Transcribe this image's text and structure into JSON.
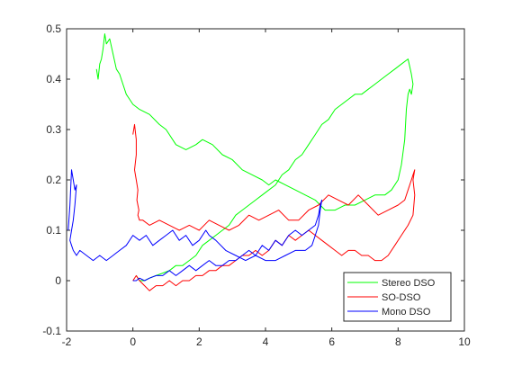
{
  "chart_data": {
    "type": "line",
    "title": "",
    "xlabel": "",
    "ylabel": "",
    "xlim": [
      -2,
      10
    ],
    "ylim": [
      -0.1,
      0.5
    ],
    "xticks": [
      "-2",
      "0",
      "2",
      "4",
      "6",
      "8",
      "10"
    ],
    "yticks": [
      "-0.1",
      "0",
      "0.1",
      "0.2",
      "0.3",
      "0.4",
      "0.5"
    ],
    "grid": false,
    "legend_position": "bottom-right",
    "series": [
      {
        "name": "Stereo DSO",
        "color": "#00ff00",
        "x": [
          -1.1,
          -1.05,
          -1.0,
          -0.95,
          -0.9,
          -0.85,
          -0.8,
          -0.7,
          -0.6,
          -0.5,
          -0.4,
          -0.3,
          -0.2,
          -0.1,
          0.0,
          0.2,
          0.5,
          0.8,
          1.0,
          1.3,
          1.6,
          1.9,
          2.1,
          2.4,
          2.7,
          3.0,
          3.3,
          3.6,
          3.9,
          4.1,
          4.3,
          4.6,
          4.9,
          5.2,
          5.5,
          5.8,
          6.1,
          6.4,
          6.7,
          7.0,
          7.3,
          7.6,
          7.8,
          8.0,
          8.1,
          8.2,
          8.25,
          8.3,
          8.35,
          8.4,
          8.45,
          8.4,
          8.3,
          8.1,
          7.9,
          7.7,
          7.5,
          7.3,
          7.1,
          6.9,
          6.7,
          6.5,
          6.3,
          6.1,
          5.9,
          5.7,
          5.5,
          5.3,
          5.1,
          4.9,
          4.7,
          4.5,
          4.3,
          4.1,
          3.9,
          3.7,
          3.5,
          3.3,
          3.1,
          2.9,
          2.7,
          2.5,
          2.3,
          2.1,
          1.9,
          1.7,
          1.5,
          1.3,
          1.1,
          0.9,
          0.7,
          0.5,
          0.35,
          0.2,
          0.1
        ],
        "y": [
          0.42,
          0.4,
          0.43,
          0.44,
          0.46,
          0.49,
          0.47,
          0.48,
          0.45,
          0.42,
          0.41,
          0.39,
          0.37,
          0.36,
          0.35,
          0.34,
          0.33,
          0.31,
          0.3,
          0.27,
          0.26,
          0.27,
          0.28,
          0.27,
          0.25,
          0.24,
          0.22,
          0.21,
          0.2,
          0.19,
          0.2,
          0.19,
          0.18,
          0.17,
          0.16,
          0.14,
          0.14,
          0.15,
          0.15,
          0.16,
          0.17,
          0.17,
          0.18,
          0.2,
          0.23,
          0.28,
          0.34,
          0.37,
          0.38,
          0.37,
          0.39,
          0.41,
          0.44,
          0.43,
          0.42,
          0.41,
          0.4,
          0.39,
          0.38,
          0.37,
          0.37,
          0.36,
          0.35,
          0.34,
          0.32,
          0.31,
          0.29,
          0.27,
          0.25,
          0.24,
          0.22,
          0.21,
          0.19,
          0.18,
          0.17,
          0.16,
          0.15,
          0.14,
          0.13,
          0.11,
          0.1,
          0.09,
          0.08,
          0.07,
          0.05,
          0.04,
          0.03,
          0.03,
          0.02,
          0.015,
          0.01,
          0.005,
          0.0,
          0.0,
          0.01
        ]
      },
      {
        "name": "SO-DSO",
        "color": "#ff0000",
        "x": [
          0.0,
          0.05,
          0.1,
          0.1,
          0.05,
          0.1,
          0.15,
          0.12,
          0.18,
          0.15,
          0.2,
          0.3,
          0.5,
          0.8,
          1.1,
          1.4,
          1.7,
          2.0,
          2.3,
          2.6,
          2.9,
          3.2,
          3.5,
          3.8,
          4.1,
          4.4,
          4.7,
          5.0,
          5.3,
          5.6,
          5.9,
          6.2,
          6.5,
          6.8,
          7.1,
          7.4,
          7.7,
          8.0,
          8.2,
          8.3,
          8.4,
          8.45,
          8.5,
          8.45,
          8.5,
          8.45,
          8.3,
          8.1,
          7.9,
          7.7,
          7.5,
          7.3,
          7.1,
          6.9,
          6.7,
          6.5,
          6.3,
          6.1,
          5.9,
          5.7,
          5.5,
          5.3,
          5.1,
          4.9,
          4.7,
          4.5,
          4.3,
          4.1,
          3.9,
          3.7,
          3.5,
          3.3,
          3.1,
          2.9,
          2.7,
          2.5,
          2.3,
          2.1,
          1.9,
          1.7,
          1.5,
          1.3,
          1.1,
          0.9,
          0.7,
          0.5,
          0.35,
          0.2,
          0.1,
          0.0
        ],
        "y": [
          0.29,
          0.31,
          0.28,
          0.25,
          0.22,
          0.2,
          0.18,
          0.16,
          0.14,
          0.13,
          0.12,
          0.12,
          0.11,
          0.12,
          0.11,
          0.1,
          0.11,
          0.1,
          0.12,
          0.11,
          0.1,
          0.11,
          0.13,
          0.12,
          0.13,
          0.14,
          0.12,
          0.12,
          0.14,
          0.15,
          0.17,
          0.16,
          0.15,
          0.17,
          0.15,
          0.13,
          0.14,
          0.15,
          0.16,
          0.18,
          0.2,
          0.21,
          0.22,
          0.2,
          0.17,
          0.13,
          0.11,
          0.09,
          0.07,
          0.05,
          0.04,
          0.04,
          0.05,
          0.05,
          0.06,
          0.06,
          0.05,
          0.06,
          0.07,
          0.08,
          0.09,
          0.1,
          0.09,
          0.08,
          0.09,
          0.07,
          0.08,
          0.06,
          0.05,
          0.06,
          0.05,
          0.05,
          0.04,
          0.03,
          0.03,
          0.02,
          0.02,
          0.01,
          0.01,
          0.0,
          0.0,
          -0.01,
          0.0,
          -0.01,
          -0.01,
          -0.02,
          -0.01,
          0.0,
          0.01,
          0.0
        ]
      },
      {
        "name": "Mono DSO",
        "color": "#0000ff",
        "x": [
          -1.95,
          -1.9,
          -1.85,
          -1.8,
          -1.75,
          -1.7,
          -1.75,
          -1.8,
          -1.85,
          -1.9,
          -1.85,
          -1.8,
          -1.7,
          -1.6,
          -1.4,
          -1.2,
          -1.0,
          -0.8,
          -0.6,
          -0.4,
          -0.2,
          0.0,
          0.2,
          0.4,
          0.6,
          0.8,
          1.0,
          1.2,
          1.4,
          1.6,
          1.8,
          2.0,
          2.2,
          2.3,
          2.5,
          2.8,
          3.1,
          3.4,
          3.7,
          4.0,
          4.3,
          4.6,
          4.9,
          5.2,
          5.4,
          5.5,
          5.6,
          5.65,
          5.7,
          5.65,
          5.6,
          5.5,
          5.3,
          5.1,
          4.9,
          4.7,
          4.5,
          4.3,
          4.1,
          3.9,
          3.7,
          3.5,
          3.3,
          3.1,
          2.9,
          2.7,
          2.5,
          2.3,
          2.1,
          1.9,
          1.7,
          1.5,
          1.3,
          1.1,
          0.9,
          0.7,
          0.5,
          0.35,
          0.2,
          0.1,
          0.0
        ],
        "y": [
          0.1,
          0.15,
          0.22,
          0.2,
          0.18,
          0.19,
          0.15,
          0.12,
          0.1,
          0.08,
          0.07,
          0.06,
          0.05,
          0.06,
          0.05,
          0.04,
          0.05,
          0.04,
          0.05,
          0.06,
          0.07,
          0.09,
          0.08,
          0.09,
          0.07,
          0.08,
          0.09,
          0.1,
          0.08,
          0.09,
          0.07,
          0.08,
          0.1,
          0.09,
          0.08,
          0.06,
          0.05,
          0.04,
          0.05,
          0.04,
          0.04,
          0.05,
          0.06,
          0.06,
          0.07,
          0.09,
          0.11,
          0.14,
          0.16,
          0.15,
          0.13,
          0.11,
          0.1,
          0.09,
          0.1,
          0.09,
          0.07,
          0.08,
          0.06,
          0.07,
          0.05,
          0.06,
          0.05,
          0.04,
          0.04,
          0.03,
          0.03,
          0.04,
          0.03,
          0.02,
          0.03,
          0.02,
          0.01,
          0.02,
          0.01,
          0.01,
          0.005,
          0.0,
          0.005,
          0.0,
          0.0
        ]
      }
    ]
  }
}
